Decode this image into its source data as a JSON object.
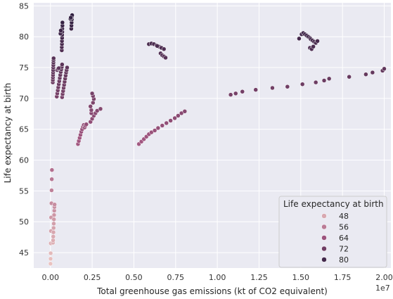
{
  "chart_data": {
    "type": "scatter",
    "title": "",
    "xlabel": "Total greenhouse gas emissions (kt of CO2 equivalent)",
    "ylabel": "Life expectancy at birth",
    "x_offset_label": "1e7",
    "xlim": [
      -1000000,
      20400000
    ],
    "ylim": [
      42.5,
      85.5
    ],
    "x_ticks": [
      0,
      2500000,
      5000000,
      7500000,
      10000000,
      12500000,
      15000000,
      17500000,
      20000000
    ],
    "x_tick_labels": [
      "0.00",
      "0.25",
      "0.50",
      "0.75",
      "1.00",
      "1.25",
      "1.50",
      "1.75",
      "2.00"
    ],
    "y_ticks": [
      45,
      50,
      55,
      60,
      65,
      70,
      75,
      80,
      85
    ],
    "y_tick_labels": [
      "45",
      "50",
      "55",
      "60",
      "65",
      "70",
      "75",
      "80",
      "85"
    ],
    "grid": true,
    "background_color": "#eaeaf2",
    "grid_color": "#ffffff",
    "color_scale": {
      "min": 42.5,
      "max": 84,
      "light": "#ecc6c2",
      "mid": "#a0557f",
      "dark": "#2d1e3f"
    },
    "legend": {
      "title": "Life expectancy at birth",
      "placement": "lower-right",
      "entries": [
        {
          "label": "48",
          "value": 48
        },
        {
          "label": "56",
          "value": 56
        },
        {
          "label": "64",
          "value": 64
        },
        {
          "label": "72",
          "value": 72
        },
        {
          "label": "80",
          "value": 80
        }
      ]
    },
    "points": [
      {
        "x": 5000,
        "y": 43.2
      },
      {
        "x": 10000,
        "y": 44.0
      },
      {
        "x": 15000,
        "y": 44.9
      },
      {
        "x": 20000,
        "y": 46.5
      },
      {
        "x": 30000,
        "y": 48.5
      },
      {
        "x": 40000,
        "y": 50.7
      },
      {
        "x": 60000,
        "y": 53.0
      },
      {
        "x": 70000,
        "y": 55.1
      },
      {
        "x": 80000,
        "y": 56.9
      },
      {
        "x": 90000,
        "y": 58.4
      },
      {
        "x": 150000,
        "y": 46.6
      },
      {
        "x": 160000,
        "y": 47.0
      },
      {
        "x": 170000,
        "y": 47.6
      },
      {
        "x": 180000,
        "y": 48.3
      },
      {
        "x": 190000,
        "y": 49.0
      },
      {
        "x": 200000,
        "y": 49.7
      },
      {
        "x": 210000,
        "y": 50.4
      },
      {
        "x": 220000,
        "y": 51.1
      },
      {
        "x": 230000,
        "y": 51.8
      },
      {
        "x": 240000,
        "y": 52.4
      },
      {
        "x": 250000,
        "y": 52.8
      },
      {
        "x": 140000,
        "y": 72.6
      },
      {
        "x": 145000,
        "y": 73.0
      },
      {
        "x": 150000,
        "y": 73.4
      },
      {
        "x": 155000,
        "y": 73.8
      },
      {
        "x": 160000,
        "y": 74.2
      },
      {
        "x": 165000,
        "y": 74.6
      },
      {
        "x": 170000,
        "y": 75.0
      },
      {
        "x": 175000,
        "y": 75.4
      },
      {
        "x": 180000,
        "y": 75.8
      },
      {
        "x": 185000,
        "y": 76.2
      },
      {
        "x": 190000,
        "y": 76.5
      },
      {
        "x": 380000,
        "y": 70.3
      },
      {
        "x": 410000,
        "y": 70.8
      },
      {
        "x": 440000,
        "y": 71.3
      },
      {
        "x": 470000,
        "y": 71.8
      },
      {
        "x": 500000,
        "y": 72.3
      },
      {
        "x": 530000,
        "y": 72.8
      },
      {
        "x": 560000,
        "y": 73.3
      },
      {
        "x": 590000,
        "y": 73.8
      },
      {
        "x": 620000,
        "y": 74.3
      },
      {
        "x": 650000,
        "y": 74.7
      },
      {
        "x": 680000,
        "y": 75.1
      },
      {
        "x": 700000,
        "y": 75.5
      },
      {
        "x": 400000,
        "y": 74.6
      },
      {
        "x": 450000,
        "y": 74.8
      },
      {
        "x": 500000,
        "y": 74.9
      },
      {
        "x": 700000,
        "y": 70.2
      },
      {
        "x": 730000,
        "y": 70.7
      },
      {
        "x": 760000,
        "y": 71.2
      },
      {
        "x": 790000,
        "y": 71.7
      },
      {
        "x": 820000,
        "y": 72.2
      },
      {
        "x": 850000,
        "y": 72.7
      },
      {
        "x": 880000,
        "y": 73.2
      },
      {
        "x": 910000,
        "y": 73.7
      },
      {
        "x": 940000,
        "y": 74.2
      },
      {
        "x": 970000,
        "y": 74.6
      },
      {
        "x": 1000000,
        "y": 75.0
      },
      {
        "x": 680000,
        "y": 77.8
      },
      {
        "x": 680000,
        "y": 78.3
      },
      {
        "x": 690000,
        "y": 78.8
      },
      {
        "x": 690000,
        "y": 79.3
      },
      {
        "x": 700000,
        "y": 79.8
      },
      {
        "x": 700000,
        "y": 80.3
      },
      {
        "x": 710000,
        "y": 80.8
      },
      {
        "x": 710000,
        "y": 81.3
      },
      {
        "x": 720000,
        "y": 81.8
      },
      {
        "x": 720000,
        "y": 82.3
      },
      {
        "x": 600000,
        "y": 80.5
      },
      {
        "x": 620000,
        "y": 81.0
      },
      {
        "x": 1250000,
        "y": 81.3
      },
      {
        "x": 1260000,
        "y": 81.8
      },
      {
        "x": 1270000,
        "y": 82.3
      },
      {
        "x": 1280000,
        "y": 82.8
      },
      {
        "x": 1290000,
        "y": 83.3
      },
      {
        "x": 1300000,
        "y": 83.5
      },
      {
        "x": 1200000,
        "y": 82.9
      },
      {
        "x": 1220000,
        "y": 83.1
      },
      {
        "x": 1650000,
        "y": 62.6
      },
      {
        "x": 1700000,
        "y": 63.1
      },
      {
        "x": 1750000,
        "y": 63.6
      },
      {
        "x": 1800000,
        "y": 64.1
      },
      {
        "x": 1850000,
        "y": 64.6
      },
      {
        "x": 1900000,
        "y": 65.0
      },
      {
        "x": 1950000,
        "y": 65.4
      },
      {
        "x": 2000000,
        "y": 65.7
      },
      {
        "x": 2050000,
        "y": 65.3
      },
      {
        "x": 2100000,
        "y": 65.6
      },
      {
        "x": 2150000,
        "y": 65.8
      },
      {
        "x": 2400000,
        "y": 66.2
      },
      {
        "x": 2500000,
        "y": 66.7
      },
      {
        "x": 2600000,
        "y": 67.2
      },
      {
        "x": 2700000,
        "y": 67.6
      },
      {
        "x": 2800000,
        "y": 68.0
      },
      {
        "x": 3000000,
        "y": 68.3
      },
      {
        "x": 2450000,
        "y": 67.6
      },
      {
        "x": 2450000,
        "y": 68.1
      },
      {
        "x": 2400000,
        "y": 68.7
      },
      {
        "x": 2550000,
        "y": 69.3
      },
      {
        "x": 2600000,
        "y": 69.9
      },
      {
        "x": 2550000,
        "y": 70.4
      },
      {
        "x": 2500000,
        "y": 70.8
      },
      {
        "x": 5300000,
        "y": 62.6
      },
      {
        "x": 5450000,
        "y": 63.0
      },
      {
        "x": 5600000,
        "y": 63.4
      },
      {
        "x": 5750000,
        "y": 63.8
      },
      {
        "x": 5900000,
        "y": 64.2
      },
      {
        "x": 6050000,
        "y": 64.5
      },
      {
        "x": 6250000,
        "y": 64.8
      },
      {
        "x": 6450000,
        "y": 65.2
      },
      {
        "x": 6700000,
        "y": 65.6
      },
      {
        "x": 6950000,
        "y": 66.0
      },
      {
        "x": 7200000,
        "y": 66.4
      },
      {
        "x": 7450000,
        "y": 66.8
      },
      {
        "x": 7650000,
        "y": 67.2
      },
      {
        "x": 7850000,
        "y": 67.6
      },
      {
        "x": 8050000,
        "y": 67.9
      },
      {
        "x": 5900000,
        "y": 78.8
      },
      {
        "x": 6050000,
        "y": 78.9
      },
      {
        "x": 6200000,
        "y": 78.8
      },
      {
        "x": 6350000,
        "y": 78.6
      },
      {
        "x": 6500000,
        "y": 78.4
      },
      {
        "x": 6650000,
        "y": 78.2
      },
      {
        "x": 6800000,
        "y": 78.0
      },
      {
        "x": 6600000,
        "y": 77.3
      },
      {
        "x": 6700000,
        "y": 77.0
      },
      {
        "x": 6800000,
        "y": 76.8
      },
      {
        "x": 6900000,
        "y": 76.6
      },
      {
        "x": 6400000,
        "y": 78.5
      },
      {
        "x": 10800000,
        "y": 70.6
      },
      {
        "x": 11100000,
        "y": 70.8
      },
      {
        "x": 11500000,
        "y": 71.1
      },
      {
        "x": 12300000,
        "y": 71.4
      },
      {
        "x": 13300000,
        "y": 71.7
      },
      {
        "x": 14200000,
        "y": 71.9
      },
      {
        "x": 15100000,
        "y": 72.3
      },
      {
        "x": 15900000,
        "y": 72.6
      },
      {
        "x": 16400000,
        "y": 72.9
      },
      {
        "x": 16700000,
        "y": 73.2
      },
      {
        "x": 17900000,
        "y": 73.5
      },
      {
        "x": 18900000,
        "y": 73.9
      },
      {
        "x": 19300000,
        "y": 74.2
      },
      {
        "x": 19900000,
        "y": 74.5
      },
      {
        "x": 20000000,
        "y": 74.8
      },
      {
        "x": 14900000,
        "y": 79.7
      },
      {
        "x": 15050000,
        "y": 80.4
      },
      {
        "x": 15150000,
        "y": 80.6
      },
      {
        "x": 15250000,
        "y": 80.4
      },
      {
        "x": 15350000,
        "y": 80.2
      },
      {
        "x": 15450000,
        "y": 80.0
      },
      {
        "x": 15550000,
        "y": 79.8
      },
      {
        "x": 15600000,
        "y": 79.6
      },
      {
        "x": 15700000,
        "y": 79.4
      },
      {
        "x": 15800000,
        "y": 79.2
      },
      {
        "x": 15900000,
        "y": 79.0
      },
      {
        "x": 16000000,
        "y": 79.3
      },
      {
        "x": 15550000,
        "y": 78.2
      },
      {
        "x": 15650000,
        "y": 78.0
      },
      {
        "x": 15750000,
        "y": 78.4
      }
    ]
  }
}
